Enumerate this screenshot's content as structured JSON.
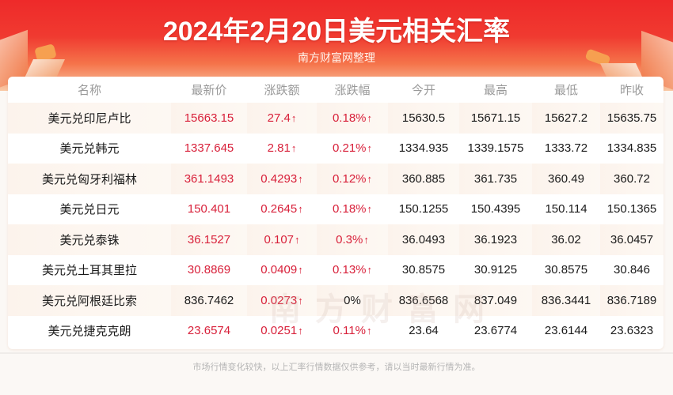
{
  "header": {
    "title": "2024年2月20日美元相关汇率",
    "subtitle": "南方财富网整理"
  },
  "watermark": "南方财富网",
  "colors": {
    "up": "#d8203a",
    "neutral": "#1a1a1a",
    "banner": "#ee2a2a"
  },
  "table": {
    "columns": [
      "名称",
      "最新价",
      "涨跌额",
      "涨跌幅",
      "今开",
      "最高",
      "最低",
      "昨收"
    ],
    "up_arrow": "↑",
    "rows": [
      {
        "name": "美元兑印尼卢比",
        "latest": "15663.15",
        "latest_up": true,
        "change": "27.4",
        "change_up": true,
        "pct": "0.18%",
        "pct_up": true,
        "open": "15630.5",
        "high": "15671.15",
        "low": "15627.2",
        "prev_close": "15635.75"
      },
      {
        "name": "美元兑韩元",
        "latest": "1337.645",
        "latest_up": true,
        "change": "2.81",
        "change_up": true,
        "pct": "0.21%",
        "pct_up": true,
        "open": "1334.935",
        "high": "1339.1575",
        "low": "1333.72",
        "prev_close": "1334.835"
      },
      {
        "name": "美元兑匈牙利福林",
        "latest": "361.1493",
        "latest_up": true,
        "change": "0.4293",
        "change_up": true,
        "pct": "0.12%",
        "pct_up": true,
        "open": "360.885",
        "high": "361.735",
        "low": "360.49",
        "prev_close": "360.72"
      },
      {
        "name": "美元兑日元",
        "latest": "150.401",
        "latest_up": true,
        "change": "0.2645",
        "change_up": true,
        "pct": "0.18%",
        "pct_up": true,
        "open": "150.1255",
        "high": "150.4395",
        "low": "150.114",
        "prev_close": "150.1365"
      },
      {
        "name": "美元兑泰铢",
        "latest": "36.1527",
        "latest_up": true,
        "change": "0.107",
        "change_up": true,
        "pct": "0.3%",
        "pct_up": true,
        "open": "36.0493",
        "high": "36.1923",
        "low": "36.02",
        "prev_close": "36.0457"
      },
      {
        "name": "美元兑土耳其里拉",
        "latest": "30.8869",
        "latest_up": true,
        "change": "0.0409",
        "change_up": true,
        "pct": "0.13%",
        "pct_up": true,
        "open": "30.8575",
        "high": "30.9125",
        "low": "30.8575",
        "prev_close": "30.846"
      },
      {
        "name": "美元兑阿根廷比索",
        "latest": "836.7462",
        "latest_up": false,
        "change": "0.0273",
        "change_up": true,
        "pct": "0%",
        "pct_up": false,
        "open": "836.6568",
        "high": "837.049",
        "low": "836.3441",
        "prev_close": "836.7189"
      },
      {
        "name": "美元兑捷克克朗",
        "latest": "23.6574",
        "latest_up": true,
        "change": "0.0251",
        "change_up": true,
        "pct": "0.11%",
        "pct_up": true,
        "open": "23.64",
        "high": "23.6774",
        "low": "23.6144",
        "prev_close": "23.6323"
      }
    ]
  },
  "footer": {
    "disclaimer": "市场行情变化较快，以上汇率行情数据仅供参考，请以当时最新行情为准。"
  }
}
